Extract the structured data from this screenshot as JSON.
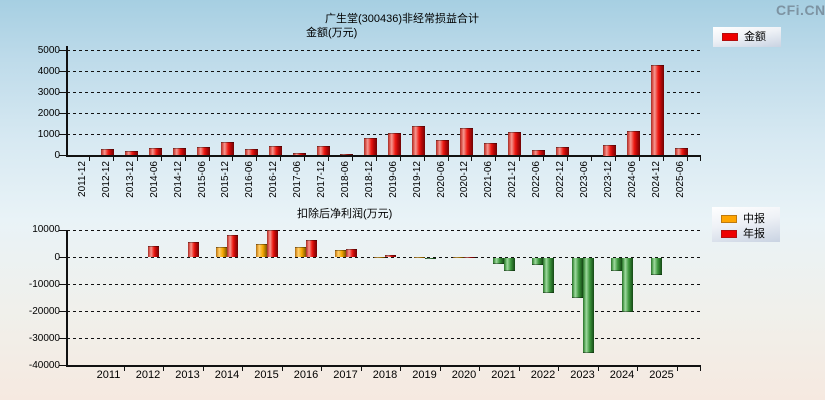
{
  "watermark": "CFi.CN",
  "chart_data": [
    {
      "type": "bar",
      "title": "广生堂(300436)非经常损益合计",
      "unit_label": "金额(万元)",
      "legend": [
        {
          "label": "金额",
          "color": "#ee0000"
        }
      ],
      "legend_position": "top-right",
      "grid": "horizontal-dashed",
      "categories": [
        "2011-12",
        "2012-12",
        "2013-12",
        "2014-06",
        "2014-12",
        "2015-06",
        "2015-12",
        "2016-06",
        "2016-12",
        "2017-06",
        "2017-12",
        "2018-06",
        "2018-12",
        "2019-06",
        "2019-12",
        "2020-06",
        "2020-12",
        "2021-06",
        "2021-12",
        "2022-06",
        "2022-12",
        "2023-06",
        "2023-12",
        "2024-06",
        "2024-12",
        "2025-06"
      ],
      "values": [
        null,
        300,
        200,
        350,
        350,
        400,
        650,
        300,
        460,
        120,
        460,
        60,
        830,
        1050,
        1400,
        730,
        1330,
        590,
        1100,
        270,
        410,
        null,
        500,
        1180,
        4300,
        380
      ],
      "ylim": [
        0,
        5000
      ],
      "yticks": [
        "5000",
        "4000",
        "3000",
        "2000",
        "1000",
        "0"
      ],
      "bar_color": "#ee0000"
    },
    {
      "type": "bar",
      "title": "扣除后净利润(万元)",
      "legend": [
        {
          "label": "中报",
          "color": "#ffa500"
        },
        {
          "label": "年报",
          "color": "#ee0000"
        }
      ],
      "legend_position": "top-right",
      "grid": "horizontal-dashed",
      "categories": [
        "2011",
        "2012",
        "2013",
        "2014",
        "2015",
        "2016",
        "2017",
        "2018",
        "2019",
        "2020",
        "2021",
        "2022",
        "2023",
        "2024",
        "2025"
      ],
      "series": [
        {
          "name": "中报",
          "values": [
            null,
            null,
            null,
            4000,
            5100,
            3900,
            2900,
            300,
            250,
            250,
            -2500,
            -2800,
            -14800,
            -5000,
            -6500
          ]
        },
        {
          "name": "年报",
          "values": [
            null,
            4200,
            5800,
            8400,
            10000,
            6600,
            3250,
            800,
            -150,
            350,
            -4800,
            -13000,
            -35200,
            -20000,
            null
          ]
        }
      ],
      "ylim": [
        -40000,
        10000
      ],
      "yticks": [
        "10000",
        "0",
        "-10000",
        "-20000",
        "-30000",
        "-40000"
      ],
      "negative_bar_color": "#3c963c"
    }
  ]
}
